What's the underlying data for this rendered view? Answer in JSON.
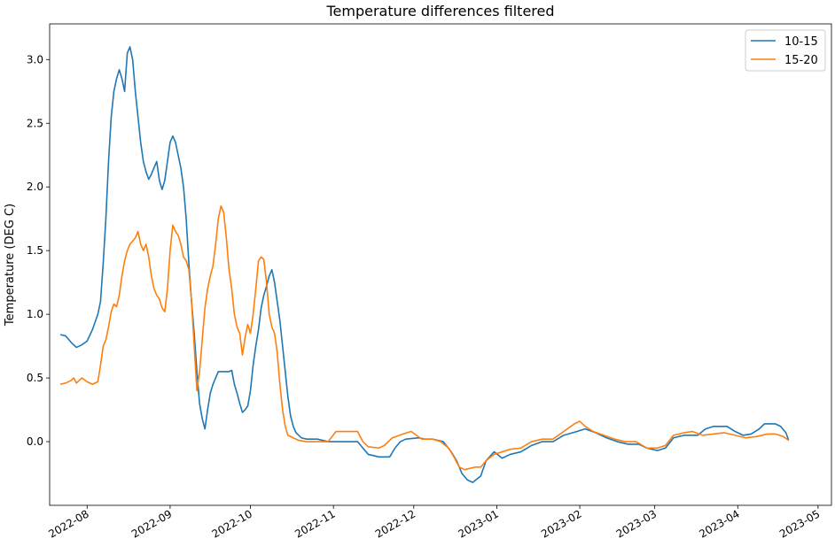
{
  "chart_data": {
    "type": "line",
    "title": "Temperature differences filtered",
    "xlabel": "",
    "ylabel": "Temperature (DEG C)",
    "x_axis_type": "date",
    "xlim": [
      "2022-07-18",
      "2023-05-06"
    ],
    "ylim": [
      -0.5,
      3.28
    ],
    "yticks": [
      0.0,
      0.5,
      1.0,
      1.5,
      2.0,
      2.5,
      3.0
    ],
    "ytick_labels": [
      "0.0",
      "0.5",
      "1.0",
      "1.5",
      "2.0",
      "2.5",
      "3.0"
    ],
    "xticks": [
      "2022-08-01",
      "2022-09-01",
      "2022-10-01",
      "2022-11-01",
      "2022-12-01",
      "2023-01-01",
      "2023-02-01",
      "2023-03-01",
      "2023-04-01",
      "2023-05-01"
    ],
    "xtick_labels": [
      "2022-08",
      "2022-09",
      "2022-10",
      "2022-11",
      "2022-12",
      "2023-01",
      "2023-02",
      "2023-03",
      "2023-04",
      "2023-05"
    ],
    "grid": false,
    "legend_position": "top-right",
    "series": [
      {
        "name": "10-15",
        "color": "#1f77b4",
        "points": [
          [
            "2022-07-22",
            0.84
          ],
          [
            "2022-07-24",
            0.83
          ],
          [
            "2022-07-26",
            0.78
          ],
          [
            "2022-07-28",
            0.74
          ],
          [
            "2022-07-30",
            0.76
          ],
          [
            "2022-08-01",
            0.79
          ],
          [
            "2022-08-03",
            0.88
          ],
          [
            "2022-08-05",
            1.0
          ],
          [
            "2022-08-06",
            1.1
          ],
          [
            "2022-08-07",
            1.4
          ],
          [
            "2022-08-08",
            1.75
          ],
          [
            "2022-08-09",
            2.2
          ],
          [
            "2022-08-10",
            2.55
          ],
          [
            "2022-08-11",
            2.75
          ],
          [
            "2022-08-12",
            2.85
          ],
          [
            "2022-08-13",
            2.92
          ],
          [
            "2022-08-14",
            2.85
          ],
          [
            "2022-08-15",
            2.75
          ],
          [
            "2022-08-16",
            3.05
          ],
          [
            "2022-08-17",
            3.1
          ],
          [
            "2022-08-18",
            3.0
          ],
          [
            "2022-08-19",
            2.75
          ],
          [
            "2022-08-20",
            2.55
          ],
          [
            "2022-08-21",
            2.35
          ],
          [
            "2022-08-22",
            2.2
          ],
          [
            "2022-08-23",
            2.12
          ],
          [
            "2022-08-24",
            2.06
          ],
          [
            "2022-08-25",
            2.1
          ],
          [
            "2022-08-26",
            2.15
          ],
          [
            "2022-08-27",
            2.2
          ],
          [
            "2022-08-28",
            2.05
          ],
          [
            "2022-08-29",
            1.98
          ],
          [
            "2022-08-30",
            2.05
          ],
          [
            "2022-08-31",
            2.2
          ],
          [
            "2022-09-01",
            2.35
          ],
          [
            "2022-09-02",
            2.4
          ],
          [
            "2022-09-03",
            2.35
          ],
          [
            "2022-09-04",
            2.25
          ],
          [
            "2022-09-05",
            2.15
          ],
          [
            "2022-09-06",
            2.0
          ],
          [
            "2022-09-07",
            1.75
          ],
          [
            "2022-09-08",
            1.4
          ],
          [
            "2022-09-09",
            1.1
          ],
          [
            "2022-09-10",
            0.85
          ],
          [
            "2022-09-11",
            0.55
          ],
          [
            "2022-09-12",
            0.3
          ],
          [
            "2022-09-13",
            0.18
          ],
          [
            "2022-09-14",
            0.1
          ],
          [
            "2022-09-15",
            0.25
          ],
          [
            "2022-09-16",
            0.38
          ],
          [
            "2022-09-17",
            0.45
          ],
          [
            "2022-09-18",
            0.5
          ],
          [
            "2022-09-19",
            0.55
          ],
          [
            "2022-09-21",
            0.55
          ],
          [
            "2022-09-23",
            0.55
          ],
          [
            "2022-09-24",
            0.56
          ],
          [
            "2022-09-25",
            0.45
          ],
          [
            "2022-09-26",
            0.38
          ],
          [
            "2022-09-27",
            0.3
          ],
          [
            "2022-09-28",
            0.23
          ],
          [
            "2022-09-29",
            0.25
          ],
          [
            "2022-09-30",
            0.28
          ],
          [
            "2022-10-01",
            0.4
          ],
          [
            "2022-10-02",
            0.6
          ],
          [
            "2022-10-03",
            0.75
          ],
          [
            "2022-10-04",
            0.88
          ],
          [
            "2022-10-05",
            1.05
          ],
          [
            "2022-10-06",
            1.15
          ],
          [
            "2022-10-07",
            1.22
          ],
          [
            "2022-10-08",
            1.3
          ],
          [
            "2022-10-09",
            1.35
          ],
          [
            "2022-10-10",
            1.25
          ],
          [
            "2022-10-11",
            1.1
          ],
          [
            "2022-10-12",
            0.95
          ],
          [
            "2022-10-13",
            0.75
          ],
          [
            "2022-10-14",
            0.55
          ],
          [
            "2022-10-15",
            0.35
          ],
          [
            "2022-10-16",
            0.2
          ],
          [
            "2022-10-17",
            0.12
          ],
          [
            "2022-10-18",
            0.07
          ],
          [
            "2022-10-20",
            0.03
          ],
          [
            "2022-10-22",
            0.02
          ],
          [
            "2022-10-26",
            0.02
          ],
          [
            "2022-10-30",
            0.0
          ],
          [
            "2022-11-05",
            0.0
          ],
          [
            "2022-11-10",
            0.0
          ],
          [
            "2022-11-12",
            -0.05
          ],
          [
            "2022-11-14",
            -0.1
          ],
          [
            "2022-11-18",
            -0.12
          ],
          [
            "2022-11-22",
            -0.12
          ],
          [
            "2022-11-24",
            -0.05
          ],
          [
            "2022-11-26",
            0.0
          ],
          [
            "2022-11-28",
            0.02
          ],
          [
            "2022-12-03",
            0.03
          ],
          [
            "2022-12-05",
            0.02
          ],
          [
            "2022-12-08",
            0.02
          ],
          [
            "2022-12-12",
            0.0
          ],
          [
            "2022-12-15",
            -0.08
          ],
          [
            "2022-12-17",
            -0.15
          ],
          [
            "2022-12-19",
            -0.25
          ],
          [
            "2022-12-21",
            -0.3
          ],
          [
            "2022-12-23",
            -0.32
          ],
          [
            "2022-12-26",
            -0.27
          ],
          [
            "2022-12-28",
            -0.15
          ],
          [
            "2022-12-31",
            -0.08
          ],
          [
            "2023-01-03",
            -0.13
          ],
          [
            "2023-01-06",
            -0.1
          ],
          [
            "2023-01-10",
            -0.08
          ],
          [
            "2023-01-14",
            -0.03
          ],
          [
            "2023-01-18",
            0.0
          ],
          [
            "2023-01-22",
            0.0
          ],
          [
            "2023-01-26",
            0.05
          ],
          [
            "2023-01-31",
            0.08
          ],
          [
            "2023-02-03",
            0.1
          ],
          [
            "2023-02-07",
            0.07
          ],
          [
            "2023-02-11",
            0.03
          ],
          [
            "2023-02-15",
            0.0
          ],
          [
            "2023-02-19",
            -0.02
          ],
          [
            "2023-02-23",
            -0.02
          ],
          [
            "2023-02-26",
            -0.05
          ],
          [
            "2023-03-02",
            -0.07
          ],
          [
            "2023-03-05",
            -0.05
          ],
          [
            "2023-03-08",
            0.03
          ],
          [
            "2023-03-12",
            0.05
          ],
          [
            "2023-03-17",
            0.05
          ],
          [
            "2023-03-20",
            0.1
          ],
          [
            "2023-03-23",
            0.12
          ],
          [
            "2023-03-28",
            0.12
          ],
          [
            "2023-03-31",
            0.08
          ],
          [
            "2023-04-03",
            0.05
          ],
          [
            "2023-04-06",
            0.06
          ],
          [
            "2023-04-09",
            0.1
          ],
          [
            "2023-04-11",
            0.14
          ],
          [
            "2023-04-15",
            0.14
          ],
          [
            "2023-04-17",
            0.12
          ],
          [
            "2023-04-19",
            0.07
          ],
          [
            "2023-04-20",
            0.01
          ]
        ]
      },
      {
        "name": "15-20",
        "color": "#ff7f0e",
        "points": [
          [
            "2022-07-22",
            0.45
          ],
          [
            "2022-07-24",
            0.46
          ],
          [
            "2022-07-26",
            0.48
          ],
          [
            "2022-07-27",
            0.5
          ],
          [
            "2022-07-28",
            0.46
          ],
          [
            "2022-07-30",
            0.5
          ],
          [
            "2022-08-01",
            0.47
          ],
          [
            "2022-08-03",
            0.45
          ],
          [
            "2022-08-05",
            0.47
          ],
          [
            "2022-08-06",
            0.6
          ],
          [
            "2022-08-07",
            0.75
          ],
          [
            "2022-08-08",
            0.8
          ],
          [
            "2022-08-09",
            0.9
          ],
          [
            "2022-08-10",
            1.02
          ],
          [
            "2022-08-11",
            1.08
          ],
          [
            "2022-08-12",
            1.06
          ],
          [
            "2022-08-13",
            1.15
          ],
          [
            "2022-08-14",
            1.3
          ],
          [
            "2022-08-15",
            1.42
          ],
          [
            "2022-08-16",
            1.5
          ],
          [
            "2022-08-17",
            1.55
          ],
          [
            "2022-08-19",
            1.6
          ],
          [
            "2022-08-20",
            1.65
          ],
          [
            "2022-08-21",
            1.55
          ],
          [
            "2022-08-22",
            1.5
          ],
          [
            "2022-08-23",
            1.55
          ],
          [
            "2022-08-24",
            1.45
          ],
          [
            "2022-08-25",
            1.3
          ],
          [
            "2022-08-26",
            1.2
          ],
          [
            "2022-08-27",
            1.15
          ],
          [
            "2022-08-28",
            1.12
          ],
          [
            "2022-08-29",
            1.05
          ],
          [
            "2022-08-30",
            1.02
          ],
          [
            "2022-08-31",
            1.2
          ],
          [
            "2022-09-01",
            1.5
          ],
          [
            "2022-09-02",
            1.7
          ],
          [
            "2022-09-03",
            1.65
          ],
          [
            "2022-09-04",
            1.62
          ],
          [
            "2022-09-05",
            1.55
          ],
          [
            "2022-09-06",
            1.45
          ],
          [
            "2022-09-07",
            1.42
          ],
          [
            "2022-09-08",
            1.35
          ],
          [
            "2022-09-09",
            1.1
          ],
          [
            "2022-09-10",
            0.75
          ],
          [
            "2022-09-11",
            0.4
          ],
          [
            "2022-09-12",
            0.55
          ],
          [
            "2022-09-13",
            0.8
          ],
          [
            "2022-09-14",
            1.05
          ],
          [
            "2022-09-15",
            1.2
          ],
          [
            "2022-09-16",
            1.3
          ],
          [
            "2022-09-17",
            1.38
          ],
          [
            "2022-09-18",
            1.55
          ],
          [
            "2022-09-19",
            1.75
          ],
          [
            "2022-09-20",
            1.85
          ],
          [
            "2022-09-21",
            1.8
          ],
          [
            "2022-09-22",
            1.6
          ],
          [
            "2022-09-23",
            1.35
          ],
          [
            "2022-09-24",
            1.2
          ],
          [
            "2022-09-25",
            1.0
          ],
          [
            "2022-09-26",
            0.9
          ],
          [
            "2022-09-27",
            0.85
          ],
          [
            "2022-09-28",
            0.68
          ],
          [
            "2022-09-29",
            0.82
          ],
          [
            "2022-09-30",
            0.92
          ],
          [
            "2022-10-01",
            0.85
          ],
          [
            "2022-10-02",
            1.0
          ],
          [
            "2022-10-03",
            1.2
          ],
          [
            "2022-10-04",
            1.42
          ],
          [
            "2022-10-05",
            1.45
          ],
          [
            "2022-10-06",
            1.43
          ],
          [
            "2022-10-07",
            1.25
          ],
          [
            "2022-10-08",
            1.0
          ],
          [
            "2022-10-09",
            0.9
          ],
          [
            "2022-10-10",
            0.85
          ],
          [
            "2022-10-11",
            0.7
          ],
          [
            "2022-10-12",
            0.45
          ],
          [
            "2022-10-13",
            0.25
          ],
          [
            "2022-10-14",
            0.12
          ],
          [
            "2022-10-15",
            0.05
          ],
          [
            "2022-10-17",
            0.03
          ],
          [
            "2022-10-19",
            0.01
          ],
          [
            "2022-10-22",
            0.0
          ],
          [
            "2022-10-26",
            0.0
          ],
          [
            "2022-10-30",
            0.0
          ],
          [
            "2022-11-02",
            0.08
          ],
          [
            "2022-11-06",
            0.08
          ],
          [
            "2022-11-10",
            0.08
          ],
          [
            "2022-11-12",
            0.0
          ],
          [
            "2022-11-14",
            -0.04
          ],
          [
            "2022-11-18",
            -0.05
          ],
          [
            "2022-11-20",
            -0.03
          ],
          [
            "2022-11-23",
            0.03
          ],
          [
            "2022-11-27",
            0.06
          ],
          [
            "2022-11-30",
            0.08
          ],
          [
            "2022-12-02",
            0.05
          ],
          [
            "2022-12-04",
            0.02
          ],
          [
            "2022-12-08",
            0.02
          ],
          [
            "2022-12-11",
            0.0
          ],
          [
            "2022-12-14",
            -0.05
          ],
          [
            "2022-12-16",
            -0.12
          ],
          [
            "2022-12-18",
            -0.2
          ],
          [
            "2022-12-20",
            -0.22
          ],
          [
            "2022-12-24",
            -0.2
          ],
          [
            "2022-12-26",
            -0.2
          ],
          [
            "2022-12-28",
            -0.15
          ],
          [
            "2022-12-31",
            -0.1
          ],
          [
            "2023-01-03",
            -0.08
          ],
          [
            "2023-01-06",
            -0.06
          ],
          [
            "2023-01-10",
            -0.05
          ],
          [
            "2023-01-14",
            0.0
          ],
          [
            "2023-01-18",
            0.02
          ],
          [
            "2023-01-22",
            0.02
          ],
          [
            "2023-01-26",
            0.08
          ],
          [
            "2023-01-30",
            0.14
          ],
          [
            "2023-02-01",
            0.16
          ],
          [
            "2023-02-03",
            0.12
          ],
          [
            "2023-02-06",
            0.08
          ],
          [
            "2023-02-10",
            0.05
          ],
          [
            "2023-02-14",
            0.02
          ],
          [
            "2023-02-18",
            0.0
          ],
          [
            "2023-02-22",
            0.0
          ],
          [
            "2023-02-26",
            -0.05
          ],
          [
            "2023-03-02",
            -0.05
          ],
          [
            "2023-03-05",
            -0.03
          ],
          [
            "2023-03-08",
            0.05
          ],
          [
            "2023-03-12",
            0.07
          ],
          [
            "2023-03-15",
            0.08
          ],
          [
            "2023-03-19",
            0.05
          ],
          [
            "2023-03-23",
            0.06
          ],
          [
            "2023-03-27",
            0.07
          ],
          [
            "2023-03-31",
            0.05
          ],
          [
            "2023-04-04",
            0.03
          ],
          [
            "2023-04-08",
            0.04
          ],
          [
            "2023-04-12",
            0.06
          ],
          [
            "2023-04-15",
            0.06
          ],
          [
            "2023-04-18",
            0.04
          ],
          [
            "2023-04-20",
            0.01
          ]
        ]
      }
    ]
  }
}
